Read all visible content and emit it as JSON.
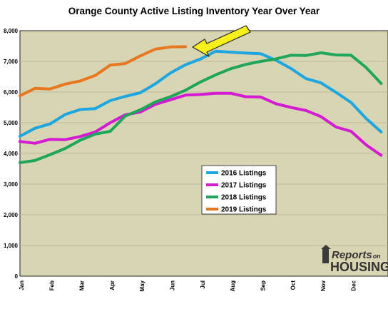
{
  "chart_data": {
    "type": "line",
    "title": "Orange County Active Listing Inventory Year Over Year",
    "x_tick_labels": [
      "Jan",
      "Feb",
      "Mar",
      "Apr",
      "May",
      "Jun",
      "Jul",
      "Aug",
      "Sep",
      "Oct",
      "Nov",
      "Dec"
    ],
    "y_tick_labels": [
      "0",
      "1,000",
      "2,000",
      "3,000",
      "4,000",
      "5,000",
      "6,000",
      "7,000",
      "8,000"
    ],
    "ylim": [
      0,
      8000
    ],
    "grid": "horizontal",
    "legend_position": "center-bottom",
    "plot_background": "#d8d5b3",
    "series": [
      {
        "name": "2016 Listings",
        "color": "#1ea6e0",
        "values": [
          4560,
          4820,
          4960,
          5270,
          5430,
          5460,
          5720,
          5860,
          5980,
          6270,
          6620,
          6890,
          7080,
          7330,
          7300,
          7270,
          7250,
          7040,
          6770,
          6440,
          6300,
          5990,
          5660,
          5140,
          4700
        ]
      },
      {
        "name": "2017 Listings",
        "color": "#d21bd2",
        "values": [
          4390,
          4330,
          4460,
          4450,
          4550,
          4700,
          5000,
          5260,
          5350,
          5600,
          5750,
          5900,
          5920,
          5960,
          5960,
          5850,
          5840,
          5620,
          5500,
          5400,
          5200,
          4860,
          4720,
          4280,
          3940
        ]
      },
      {
        "name": "2018 Listings",
        "color": "#1fa65a",
        "values": [
          3700,
          3770,
          3960,
          4160,
          4430,
          4630,
          4720,
          5220,
          5420,
          5680,
          5850,
          6060,
          6330,
          6560,
          6760,
          6900,
          7000,
          7080,
          7200,
          7190,
          7280,
          7210,
          7200,
          6800,
          6280
        ]
      },
      {
        "name": "2019 Listings",
        "color": "#e87722",
        "values": [
          5880,
          6120,
          6100,
          6260,
          6360,
          6540,
          6880,
          6930,
          7180,
          7400,
          7470,
          7480
        ]
      }
    ],
    "annotation": "arrow pointing to latest 2019 value"
  },
  "logo": {
    "line1": "Reports",
    "line1_suffix": "on",
    "line2": "HOUSING"
  }
}
